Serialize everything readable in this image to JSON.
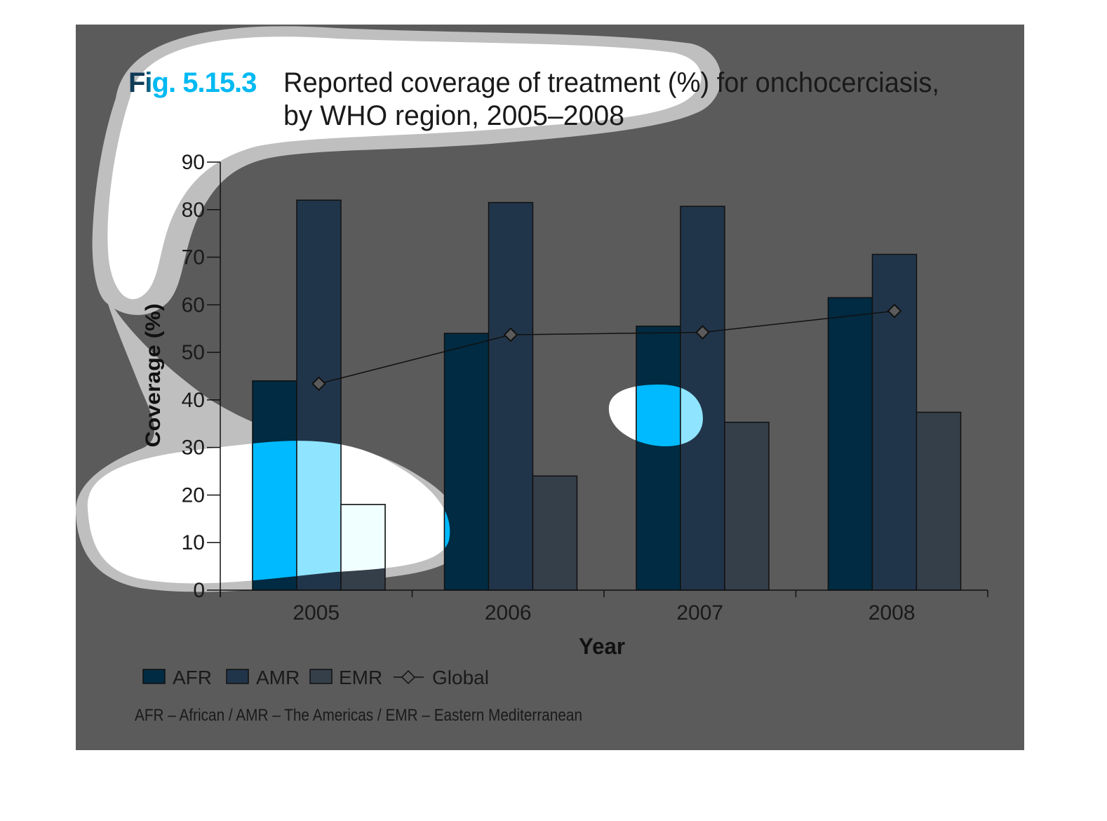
{
  "figure": {
    "number_label": "Fig. 5.15.3",
    "title_line1": "Reported coverage of treatment (%) for onchocerciasis,",
    "title_line2": "by WHO region, 2005–2008",
    "footnote": "AFR – African / AMR – The Americas / EMR – Eastern Mediterranean"
  },
  "colors": {
    "overlay": "#5b5b5b",
    "halo": "#bfbfbf",
    "fig_number": "#00b9f2",
    "text": "#1a1a1a",
    "AFR": "#00baff",
    "AMR": "#8fe5ff",
    "EMR": "#f0ffff",
    "AFR_shaded": "#002b42",
    "AMR_shaded": "#21354a",
    "EMR_shaded": "#353f4a",
    "marker_shaded": "#5b5b5b"
  },
  "chart_data": {
    "type": "bar",
    "title": "Reported coverage of treatment (%) for onchocerciasis, by WHO region, 2005–2008",
    "xlabel": "Year",
    "ylabel": "Coverage (%)",
    "categories": [
      "2005",
      "2006",
      "2007",
      "2008"
    ],
    "ylim": [
      0,
      90
    ],
    "yticks": [
      0,
      10,
      20,
      30,
      40,
      50,
      60,
      70,
      80,
      90
    ],
    "grid": false,
    "legend_placement": "bottom-left",
    "series": [
      {
        "name": "AFR",
        "kind": "bar",
        "values": [
          44,
          54,
          55.5,
          61.5
        ]
      },
      {
        "name": "AMR",
        "kind": "bar",
        "values": [
          82,
          81.5,
          80.7,
          70.6
        ]
      },
      {
        "name": "EMR",
        "kind": "bar",
        "values": [
          18,
          24,
          35.3,
          37.4
        ]
      },
      {
        "name": "Global",
        "kind": "line",
        "marker": "diamond",
        "values": [
          43.4,
          53.7,
          54.2,
          58.7
        ]
      }
    ]
  }
}
